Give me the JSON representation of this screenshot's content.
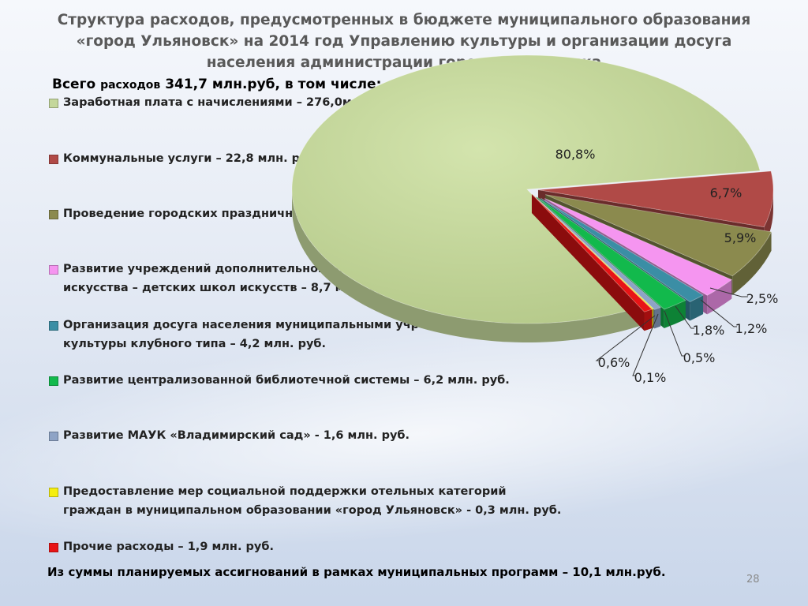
{
  "title": "Структура расходов, предусмотренных в бюджете муниципального образования «город Ульяновск» на 2014 год Управлению культуры и организации досуга населения администрации города Ульяновска",
  "total": {
    "prefix": "Всего",
    "middle": "расходов",
    "value": "341,7 млн.руб, в том числе:"
  },
  "legend": [
    {
      "text": "Заработная плата с начислениями – 276,0млн. руб.",
      "color": "#c4d79b"
    },
    {
      "text": "Коммунальные услуги – 22,8 млн. руб.",
      "color": "#b04a47"
    },
    {
      "text": "Проведение городских праздничных мероприятий – 20,0 млн. руб.",
      "color": "#8b8a4e"
    },
    {
      "text": "Развитие учреждений дополнительного образования в сфере культуры и искусства  – детских школ искусств – 8,7 млн. руб.",
      "color": "#f595f0"
    },
    {
      "text": "Организация досуга населения муниципальными учреждениями культуры клубного типа – 4,2    млн. руб.",
      "color": "#3b8ea5"
    },
    {
      "text": "Развитие централизованной библиотечной системы  – 6,2 млн. руб.",
      "color": "#12b94c"
    },
    {
      "text": "Развитие МАУК «Владимирский сад» - 1,6 млн. руб.",
      "color": "#8ea3c6"
    },
    {
      "text": "Предоставление мер социальной поддержки отельных категорий граждан в муниципальном образовании «город Ульяновск» - 0,3 млн. руб.",
      "color": "#f5ee0f"
    },
    {
      "text": "Прочие расходы – 1,9 млн. руб.",
      "color": "#e81416"
    }
  ],
  "chart_data": {
    "type": "pie",
    "title": "",
    "slices": [
      {
        "label": "80,8%",
        "value": 80.8,
        "color": "#c4d79b"
      },
      {
        "label": "6,7%",
        "value": 6.7,
        "color": "#b04a47"
      },
      {
        "label": "5,9%",
        "value": 5.9,
        "color": "#8b8a4e"
      },
      {
        "label": "2,5%",
        "value": 2.5,
        "color": "#f595f0"
      },
      {
        "label": "1,2%",
        "value": 1.2,
        "color": "#3b8ea5"
      },
      {
        "label": "1,8%",
        "value": 1.8,
        "color": "#12b94c"
      },
      {
        "label": "0,5%",
        "value": 0.5,
        "color": "#8ea3c6"
      },
      {
        "label": "0,1%",
        "value": 0.1,
        "color": "#f5ee0f"
      },
      {
        "label": "0,6%",
        "value": 0.6,
        "color": "#e81416"
      }
    ]
  },
  "footer": "Из суммы планируемых ассигнований в рамках муниципальных программ – 10,1 млн.руб.",
  "page_number": "28"
}
